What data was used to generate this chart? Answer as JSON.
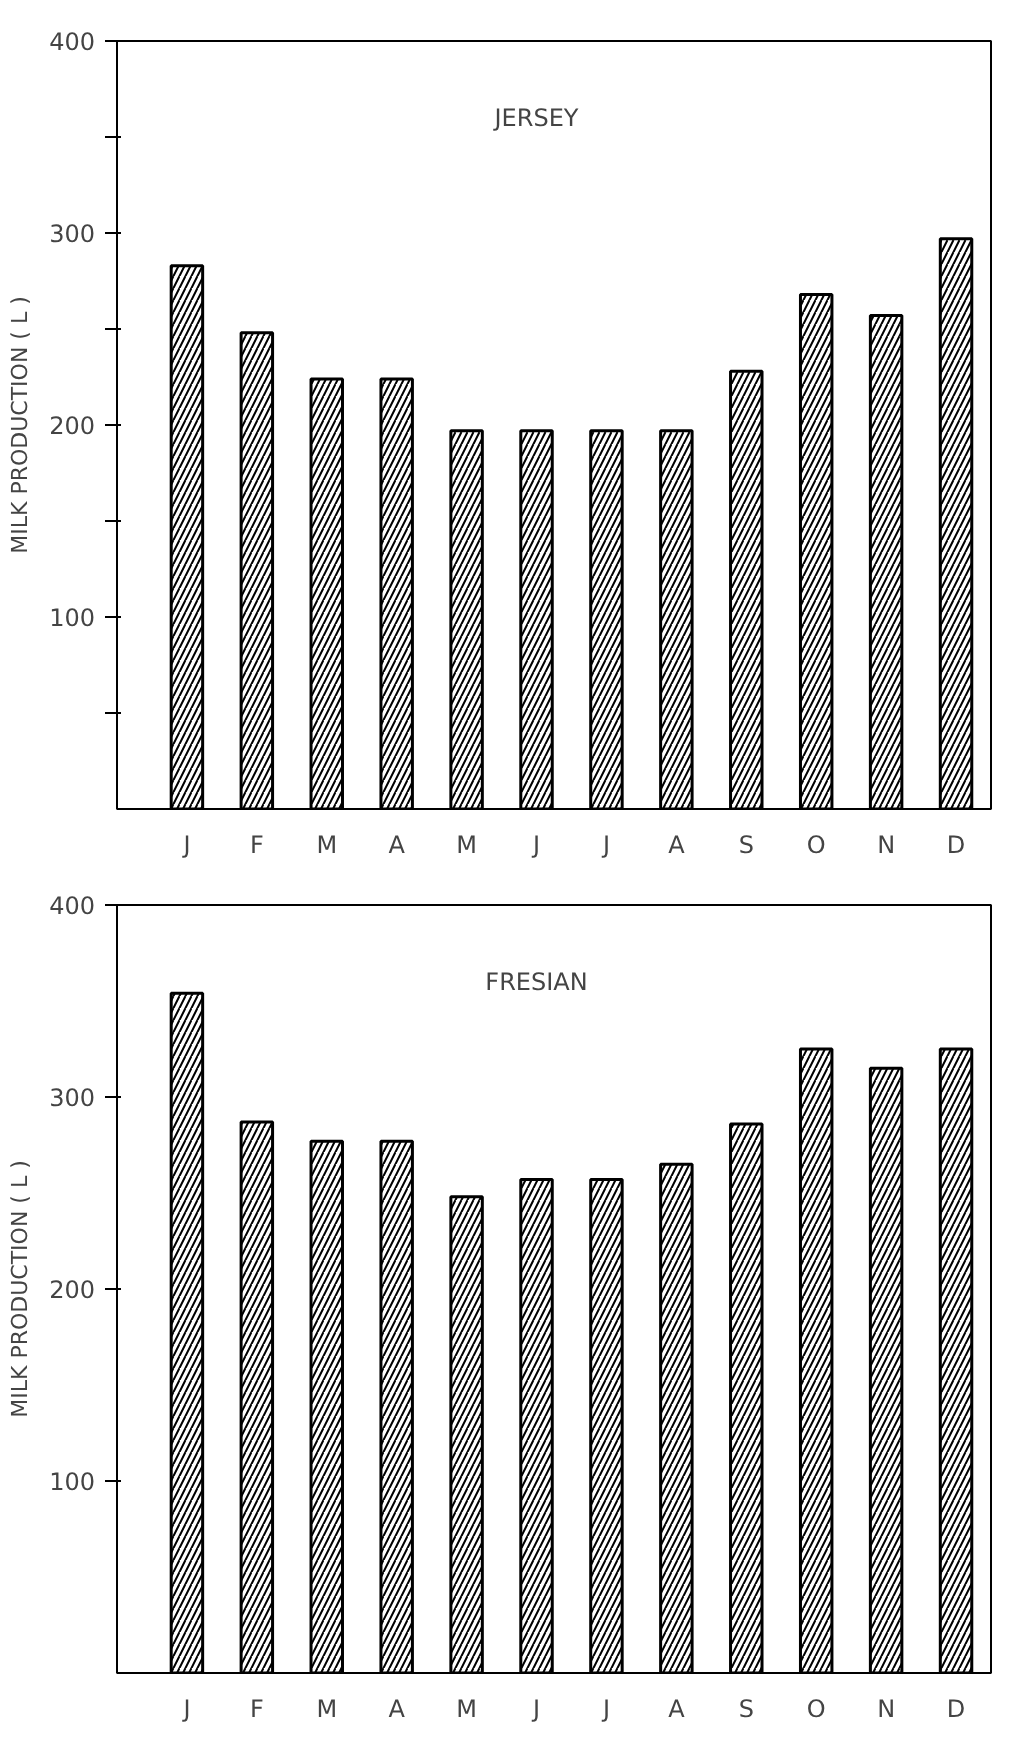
{
  "chart_data": [
    {
      "type": "bar",
      "title": "JERSEY",
      "ylabel": "MILK PRODUCTION ( L )",
      "categories": [
        "J",
        "F",
        "M",
        "A",
        "M",
        "J",
        "J",
        "A",
        "S",
        "O",
        "N",
        "D"
      ],
      "values": [
        283,
        248,
        224,
        224,
        197,
        197,
        197,
        197,
        228,
        268,
        257,
        297
      ],
      "color": "#000000",
      "ylim": [
        0,
        400
      ],
      "yticks": [
        {
          "value": 50,
          "label": null
        },
        100,
        {
          "value": 150,
          "label": null
        },
        200,
        {
          "value": 250,
          "label": null
        },
        300,
        {
          "value": 350,
          "label": null
        },
        400
      ]
    },
    {
      "type": "bar",
      "title": "FRESIAN",
      "ylabel": "MILK PRODUCTION ( L )",
      "categories": [
        "J",
        "F",
        "M",
        "A",
        "M",
        "J",
        "J",
        "A",
        "S",
        "O",
        "N",
        "D"
      ],
      "values": [
        354,
        287,
        277,
        277,
        248,
        257,
        257,
        265,
        286,
        325,
        315,
        325
      ],
      "color": "#000000",
      "ylim": [
        0,
        400
      ],
      "yticks": [
        100,
        200,
        300,
        400
      ]
    }
  ]
}
